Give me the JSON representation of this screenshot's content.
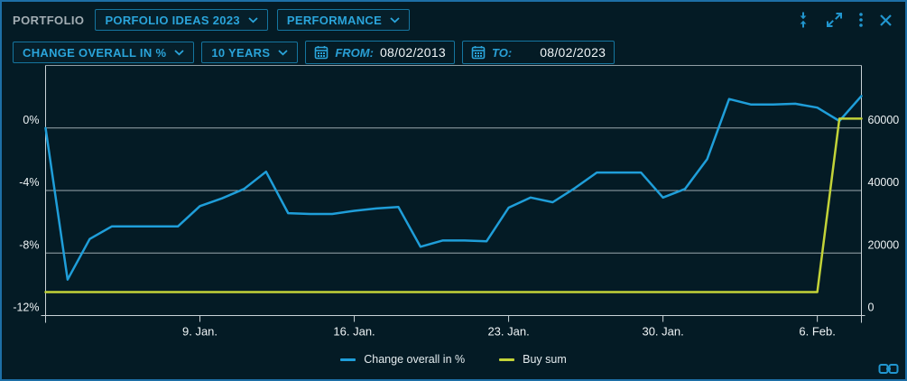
{
  "panel": {
    "title": "PORTFOLIO"
  },
  "header": {
    "portfolio_select": "PORFOLIO IDEAS 2023",
    "view_select": "PERFORMANCE",
    "icons": [
      "collapse-icon",
      "expand-icon",
      "kebab-menu-icon",
      "close-icon"
    ]
  },
  "toolbar": {
    "metric_select": "CHANGE OVERALL IN %",
    "range_select": "10 YEARS",
    "from_label": "FROM:",
    "from_value": "08/02/2013",
    "to_label": "TO:",
    "to_value": "08/02/2023"
  },
  "colors": {
    "accent": "#2aa4da",
    "border": "#1d6fa6",
    "background": "#041b25",
    "grid": "#b6c1c6",
    "axis": "#c9d3d7",
    "text_light": "#eef3f5",
    "line_blue": "#1f9ed9",
    "line_yellow": "#c3d338"
  },
  "chart_data": {
    "type": "line",
    "x": [
      "2. Jan.",
      "3. Jan.",
      "4. Jan.",
      "5. Jan.",
      "6. Jan.",
      "7. Jan.",
      "8. Jan.",
      "9. Jan.",
      "10. Jan.",
      "11. Jan.",
      "12. Jan.",
      "13. Jan.",
      "14. Jan.",
      "15. Jan.",
      "16. Jan.",
      "17. Jan.",
      "18. Jan.",
      "19. Jan.",
      "20. Jan.",
      "21. Jan.",
      "22. Jan.",
      "23. Jan.",
      "24. Jan.",
      "25. Jan.",
      "26. Jan.",
      "27. Jan.",
      "28. Jan.",
      "29. Jan.",
      "30. Jan.",
      "31. Jan.",
      "1. Feb.",
      "2. Feb.",
      "3. Feb.",
      "4. Feb.",
      "5. Feb.",
      "6. Feb.",
      "7. Feb.",
      "8. Feb."
    ],
    "x_ticks": [
      {
        "index": 7,
        "label": "9. Jan."
      },
      {
        "index": 14,
        "label": "16. Jan."
      },
      {
        "index": 21,
        "label": "23. Jan."
      },
      {
        "index": 28,
        "label": "30. Jan."
      },
      {
        "index": 35,
        "label": "6. Feb."
      }
    ],
    "series": [
      {
        "name": "Change overall in %",
        "axis": "left",
        "color": "#1f9ed9",
        "values": [
          0,
          -9.7,
          -7.1,
          -6.3,
          -6.3,
          -6.3,
          -6.3,
          -5.0,
          -4.5,
          -3.9,
          -2.8,
          -5.45,
          -5.5,
          -5.5,
          -5.3,
          -5.15,
          -5.05,
          -7.6,
          -7.2,
          -7.2,
          -7.25,
          -5.1,
          -4.45,
          -4.75,
          -3.85,
          -2.85,
          -2.85,
          -2.85,
          -4.45,
          -3.9,
          -2.0,
          1.85,
          1.5,
          1.5,
          1.55,
          1.3,
          0.45,
          2.05
        ]
      },
      {
        "name": "Buy sum",
        "axis": "right",
        "color": "#c3d338",
        "values": [
          7500,
          7500,
          7500,
          7500,
          7500,
          7500,
          7500,
          7500,
          7500,
          7500,
          7500,
          7500,
          7500,
          7500,
          7500,
          7500,
          7500,
          7500,
          7500,
          7500,
          7500,
          7500,
          7500,
          7500,
          7500,
          7500,
          7500,
          7500,
          7500,
          7500,
          7500,
          7500,
          7500,
          7500,
          7500,
          7500,
          63000,
          63000
        ]
      }
    ],
    "left_axis": {
      "ticks": [
        "0%",
        "-4%",
        "-8%",
        "-12%"
      ],
      "values": [
        0,
        -4,
        -8,
        -12
      ],
      "range": [
        -12,
        4
      ]
    },
    "right_axis": {
      "ticks": [
        "60000",
        "40000",
        "20000",
        "0"
      ],
      "values": [
        60000,
        40000,
        20000,
        0
      ],
      "range": [
        0,
        80000
      ]
    },
    "legend_position": "bottom",
    "grid": true
  }
}
